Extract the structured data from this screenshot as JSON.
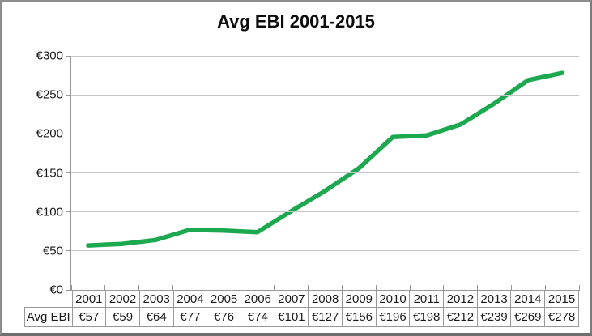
{
  "chart": {
    "title": "Avg EBI 2001-2015"
  },
  "chart_data": {
    "type": "line",
    "title": "Avg EBI 2001-2015",
    "categories": [
      "2001",
      "2002",
      "2003",
      "2004",
      "2005",
      "2006",
      "2007",
      "2008",
      "2009",
      "2010",
      "2011",
      "2012",
      "2013",
      "2014",
      "2015"
    ],
    "series": [
      {
        "name": "Avg EBI",
        "values": [
          57,
          59,
          64,
          77,
          76,
          74,
          101,
          127,
          156,
          196,
          198,
          212,
          239,
          269,
          278
        ]
      }
    ],
    "xlabel": "",
    "ylabel": "",
    "ylim": [
      0,
      300
    ],
    "ytick_interval": 50,
    "ytick_labels": [
      "€0",
      "€50",
      "€100",
      "€150",
      "€200",
      "€250",
      "€300"
    ],
    "grid": "horizontal",
    "legend_position": "none",
    "data_table": {
      "row_header": "Avg EBI",
      "cell_values": [
        "€57",
        "€59",
        "€64",
        "€77",
        "€76",
        "€74",
        "€101",
        "€127",
        "€156",
        "€196",
        "€198",
        "€212",
        "€239",
        "€269",
        "€278"
      ]
    }
  },
  "colors": {
    "line": "#1ca84e",
    "gridline": "#c6c6c6",
    "axis": "#969696",
    "table_border": "#999999",
    "chart_border": "#8d8d8d",
    "background": "#ffffff",
    "text": "#1a1a1a"
  }
}
